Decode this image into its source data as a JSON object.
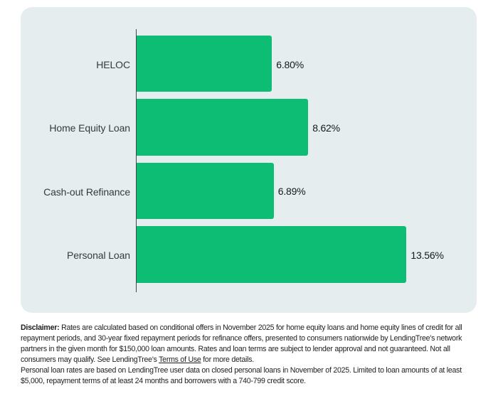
{
  "chart_data": {
    "type": "bar",
    "orientation": "horizontal",
    "categories": [
      "HELOC",
      "Home Equity Loan",
      "Cash-out Refinance",
      "Personal Loan"
    ],
    "values": [
      6.8,
      8.62,
      6.89,
      13.56
    ],
    "value_labels": [
      "6.80%",
      "8.62%",
      "6.89%",
      "13.56%"
    ],
    "title": "",
    "xlabel": "",
    "ylabel": "",
    "xlim": [
      0,
      14
    ],
    "bar_color": "#0dbd74",
    "card_background": "#e5edee",
    "legend": "none",
    "grid": "off"
  },
  "disclaimer": {
    "label": "Disclaimer:",
    "p1_line1_rest": " Rates are calculated based on conditional offers in November 2025 for home equity loans and home equity lines of credit for all",
    "p1_line2": "repayment periods, and 30-year fixed repayment periods for refinance offers, presented to consumers nationwide by LendingTree's network",
    "p1_line3": "partners in the given month for $150,000 loan amounts. Rates and loan terms are subject to lender approval and not guaranteed. Not all",
    "p1_line4_pre": "consumers may qualify. See LendingTree's ",
    "terms_link": "Terms of Use",
    "p1_line4_post": " for more details.",
    "p2_line1": "Personal loan rates are based on LendingTree user data on closed personal loans in November of 2025. Limited to loan amounts of at least",
    "p2_line2": "$5,000, repayment terms of at least 24 months and borrowers with a 740-799 credit score."
  }
}
